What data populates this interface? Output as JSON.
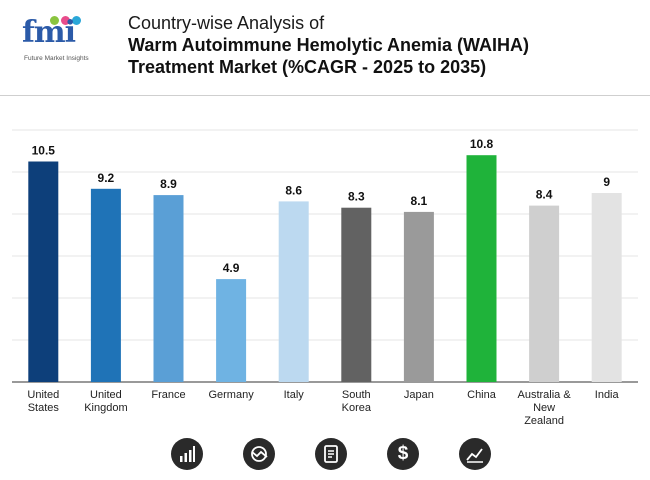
{
  "logo": {
    "mark": "fmi",
    "tagline": "Future Market Insights",
    "dot_colors": [
      "#8ac43f",
      "#e84c8b",
      "#2aa7d8"
    ]
  },
  "title": {
    "line1": "Country-wise Analysis of",
    "line2": "Warm Autoimmune Hemolytic Anemia (WAIHA)",
    "line3": "Treatment Market (%CAGR - 2025 to 2035)"
  },
  "chart_data": {
    "type": "bar",
    "categories": [
      "United States",
      "United Kingdom",
      "France",
      "Germany",
      "Italy",
      "South Korea",
      "Japan",
      "China",
      "Australia & New Zealand",
      "India"
    ],
    "category_lines": [
      [
        "United",
        "States"
      ],
      [
        "United",
        "Kingdom"
      ],
      [
        "France"
      ],
      [
        "Germany"
      ],
      [
        "Italy"
      ],
      [
        "South",
        "Korea"
      ],
      [
        "Japan"
      ],
      [
        "China"
      ],
      [
        "Australia &",
        "New",
        "Zealand"
      ],
      [
        "India"
      ]
    ],
    "values": [
      10.5,
      9.2,
      8.9,
      4.9,
      8.6,
      8.3,
      8.1,
      10.8,
      8.4,
      9
    ],
    "value_labels": [
      "10.5",
      "9.2",
      "8.9",
      "4.9",
      "8.6",
      "8.3",
      "8.1",
      "10.8",
      "8.4",
      "9"
    ],
    "bar_colors": [
      "#0d3f7a",
      "#1f73b7",
      "#5a9fd6",
      "#6fb3e3",
      "#bcd9f0",
      "#626262",
      "#9a9a9a",
      "#1fb33a",
      "#cfcfcf",
      "#e3e3e3"
    ],
    "ylim": [
      0,
      12
    ],
    "grid": true,
    "title": "",
    "xlabel": "",
    "ylabel": ""
  },
  "footer_icons": [
    "bar-chart-icon",
    "pie-chart-icon",
    "report-document-icon",
    "dollar-icon",
    "trend-line-icon"
  ]
}
